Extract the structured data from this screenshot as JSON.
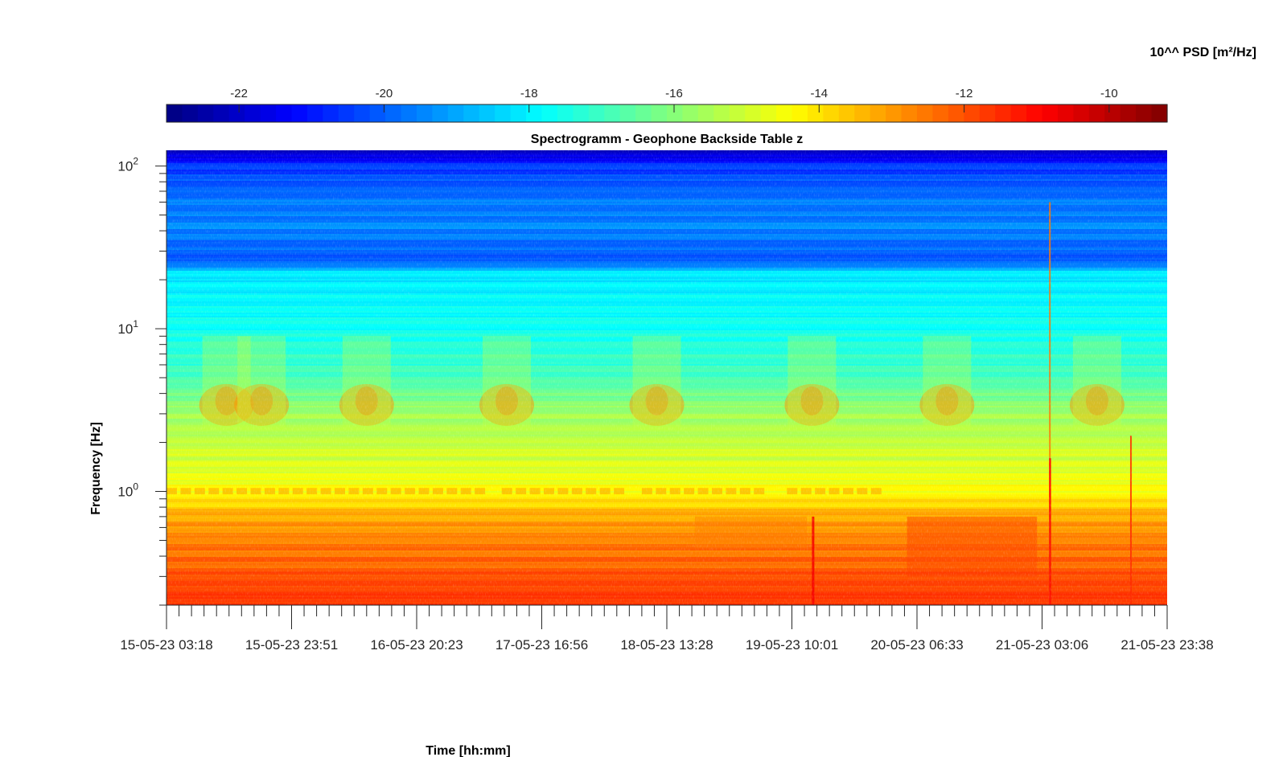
{
  "chart_data": {
    "type": "heatmap",
    "title": "Spectrogramm - Geophone Backside Table z",
    "xlabel": "Time [hh:mm]",
    "ylabel": "Frequency [Hz]",
    "y_scale": "log",
    "ylim": [
      0.2,
      125
    ],
    "x_tick_labels": [
      "15-05-23 03:18",
      "15-05-23 23:51",
      "16-05-23 20:23",
      "17-05-23 16:56",
      "18-05-23 13:28",
      "19-05-23 10:01",
      "20-05-23 06:33",
      "21-05-23 03:06",
      "21-05-23 23:38"
    ],
    "x_minor_ticks_per_interval": 10,
    "y_major_ticks": [
      {
        "value": 100,
        "base": "10",
        "exp": "2"
      },
      {
        "value": 10,
        "base": "10",
        "exp": "1"
      },
      {
        "value": 1,
        "base": "10",
        "exp": "0"
      }
    ],
    "colorbar": {
      "label": "10^^ PSD [m²/Hz]",
      "range": [
        -23,
        -9.2
      ],
      "ticks": [
        -22,
        -20,
        -18,
        -16,
        -14,
        -12,
        -10
      ],
      "colormap": "jet",
      "location": "top"
    },
    "psd_log10_profile": [
      {
        "freq_hz": 125,
        "value": -22.3
      },
      {
        "freq_hz": 100,
        "value": -20.6
      },
      {
        "freq_hz": 60,
        "value": -19.6
      },
      {
        "freq_hz": 40,
        "value": -19.5
      },
      {
        "freq_hz": 26,
        "value": -20.2
      },
      {
        "freq_hz": 22,
        "value": -18.1
      },
      {
        "freq_hz": 10,
        "value": -17.7
      },
      {
        "freq_hz": 5,
        "value": -16.9
      },
      {
        "freq_hz": 3,
        "value": -15.7
      },
      {
        "freq_hz": 1,
        "value": -14.4
      },
      {
        "freq_hz": 0.7,
        "value": -13.2
      },
      {
        "freq_hz": 0.4,
        "value": -12.4
      },
      {
        "freq_hz": 0.2,
        "value": -11.8
      }
    ]
  }
}
